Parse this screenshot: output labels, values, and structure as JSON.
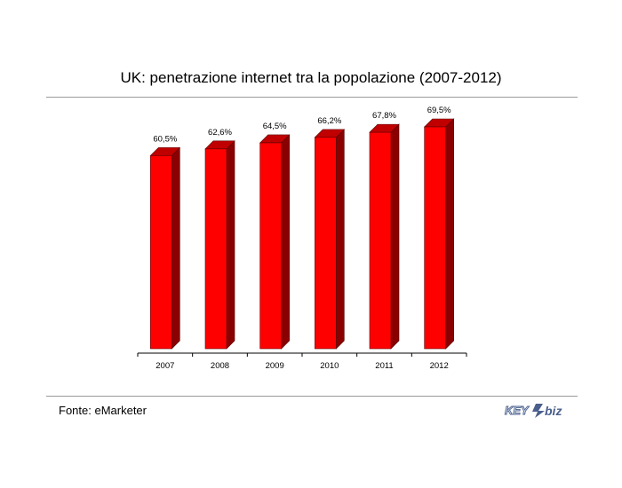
{
  "title": "UK: penetrazione internet tra la popolazione (2007-2012)",
  "source": "Fonte: eMarketer",
  "logo": {
    "left": "KEY",
    "right": "biz"
  },
  "colors": {
    "bar_front": "#ff0000",
    "bar_side": "#8a0000",
    "bar_top": "#c00000",
    "rule": "#9a9a9a"
  },
  "chart_data": {
    "type": "bar",
    "title": "UK: penetrazione internet tra la popolazione (2007-2012)",
    "categories": [
      "2007",
      "2008",
      "2009",
      "2010",
      "2011",
      "2012"
    ],
    "values": [
      60.5,
      62.6,
      64.5,
      66.2,
      67.8,
      69.5
    ],
    "data_labels": [
      "60,5%",
      "62,6%",
      "64,5%",
      "66,2%",
      "67,8%",
      "69,5%"
    ],
    "ylim": [
      0,
      69.5
    ],
    "grid": false,
    "legend": "none",
    "style": "3d"
  }
}
